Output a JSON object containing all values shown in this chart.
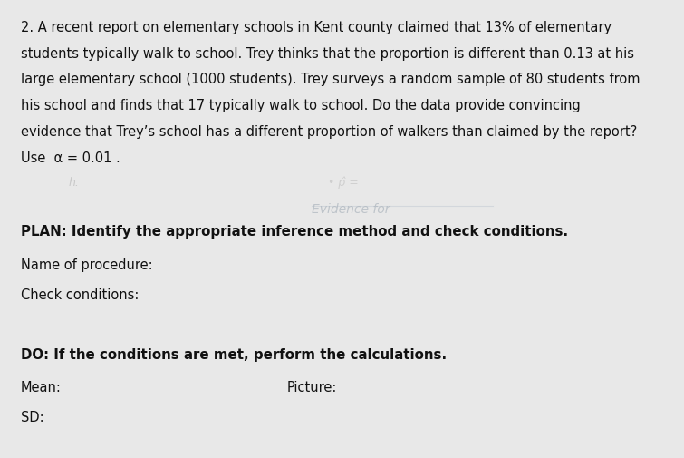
{
  "background_color": "#e8e8e8",
  "page_bg": "#ffffff",
  "paragraph_text": "2. A recent report on elementary schools in Kent county claimed that 13% of elementary\nstudents typically walk to school. Trey thinks that the proportion is different than 0.13 at his\nlarge elementary school (1000 students). Trey surveys a random sample of 80 students from\nhis school and finds that 17 typically walk to school. Do the data provide convincing\nevidence that Trey’s school has a different proportion of walkers than claimed by the report?\nUse  α = 0.01 .",
  "handwriting_label": "Evidence for",
  "plan_bold": "PLAN: Identify the appropriate inference method and check conditions.",
  "name_label": "Name of procedure:",
  "check_label": "Check conditions:",
  "do_bold": "DO: If the conditions are met, perform the calculations.",
  "mean_label": "Mean:",
  "picture_label": "Picture:",
  "sd_label": "SD:",
  "font_size_body": 10.5,
  "font_size_bold": 10.8,
  "font_size_handwriting": 9,
  "text_color": "#111111",
  "handwriting_color": "#aaaaaa"
}
